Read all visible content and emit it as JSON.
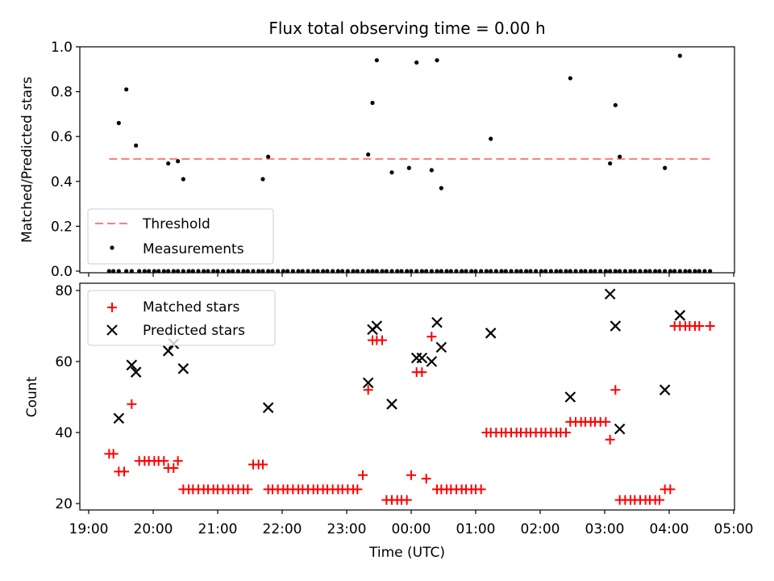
{
  "chart_data": [
    {
      "type": "scatter",
      "title": "Flux total observing time = 0.00 h",
      "ylabel": "Matched/Predicted stars",
      "xlabel": "",
      "xlim": [
        "19:00",
        "05:00"
      ],
      "ylim": [
        0,
        1
      ],
      "yticks": [
        0.0,
        0.2,
        0.4,
        0.6,
        0.8,
        1.0
      ],
      "ytick_labels": [
        "0.0",
        "0.2",
        "0.4",
        "0.6",
        "0.8",
        "1.0"
      ],
      "legend_placement": "lower-left",
      "threshold": {
        "name": "Threshold",
        "value": 0.5,
        "x_start": "19:19",
        "x_end": "04:38",
        "color": "#ff7f7f",
        "style": "dashed"
      },
      "series": [
        {
          "name": "Measurements",
          "color": "#000000",
          "marker": "dot",
          "x": [
            "19:19",
            "19:23",
            "19:28",
            "19:35",
            "19:40",
            "19:47",
            "19:52",
            "19:56",
            "20:01",
            "20:05",
            "20:10",
            "20:14",
            "20:19",
            "20:23",
            "20:28",
            "20:33",
            "20:37",
            "20:42",
            "20:47",
            "20:51",
            "20:56",
            "21:00",
            "21:05",
            "21:10",
            "21:14",
            "21:19",
            "21:24",
            "21:28",
            "21:33",
            "21:38",
            "21:42",
            "21:47",
            "21:51",
            "21:56",
            "22:01",
            "22:05",
            "22:10",
            "22:15",
            "22:19",
            "22:24",
            "22:29",
            "22:33",
            "22:38",
            "22:42",
            "22:47",
            "22:52",
            "22:56",
            "23:01",
            "23:06",
            "23:10",
            "23:15",
            "23:20",
            "23:24",
            "23:28",
            "23:33",
            "23:37",
            "23:42",
            "23:47",
            "23:51",
            "23:56",
            "00:00",
            "00:05",
            "00:10",
            "00:14",
            "00:19",
            "00:24",
            "00:28",
            "00:33",
            "00:37",
            "00:42",
            "00:47",
            "00:51",
            "00:56",
            "01:00",
            "01:05",
            "01:10",
            "01:14",
            "01:19",
            "01:24",
            "01:28",
            "01:33",
            "01:38",
            "01:42",
            "01:47",
            "01:51",
            "01:56",
            "02:01",
            "02:05",
            "02:10",
            "02:15",
            "02:19",
            "02:24",
            "02:28",
            "02:33",
            "02:38",
            "02:42",
            "02:47",
            "02:51",
            "02:56",
            "03:01",
            "03:05",
            "03:10",
            "03:14",
            "03:19",
            "03:24",
            "03:28",
            "03:33",
            "03:38",
            "03:42",
            "03:47",
            "03:51",
            "03:56",
            "04:01",
            "04:05",
            "04:10",
            "04:15",
            "04:19",
            "04:24",
            "04:28",
            "04:33",
            "04:38",
            "19:28",
            "19:35",
            "19:44",
            "20:14",
            "20:23",
            "20:28",
            "21:42",
            "21:47",
            "23:20",
            "23:24",
            "23:28",
            "23:42",
            "23:58",
            "00:05",
            "00:19",
            "00:24",
            "00:28",
            "01:14",
            "02:28",
            "03:05",
            "03:10",
            "03:14",
            "03:56",
            "04:10"
          ],
          "y": [
            0,
            0,
            0,
            0,
            0,
            0,
            0,
            0,
            0,
            0,
            0,
            0,
            0,
            0,
            0,
            0,
            0,
            0,
            0,
            0,
            0,
            0,
            0,
            0,
            0,
            0,
            0,
            0,
            0,
            0,
            0,
            0,
            0,
            0,
            0,
            0,
            0,
            0,
            0,
            0,
            0,
            0,
            0,
            0,
            0,
            0,
            0,
            0,
            0,
            0,
            0,
            0,
            0,
            0,
            0,
            0,
            0,
            0,
            0,
            0,
            0,
            0,
            0,
            0,
            0,
            0,
            0,
            0,
            0,
            0,
            0,
            0,
            0,
            0,
            0,
            0,
            0,
            0,
            0,
            0,
            0,
            0,
            0,
            0,
            0,
            0,
            0,
            0,
            0,
            0,
            0,
            0,
            0,
            0,
            0,
            0,
            0,
            0,
            0,
            0,
            0,
            0,
            0,
            0,
            0,
            0,
            0,
            0,
            0,
            0,
            0,
            0,
            0,
            0,
            0,
            0,
            0,
            0,
            0,
            0,
            0,
            0.66,
            0.81,
            0.56,
            0.48,
            0.49,
            0.41,
            0.41,
            0.51,
            0.52,
            0.75,
            0.94,
            0.44,
            0.46,
            0.93,
            0.45,
            0.94,
            0.37,
            0.59,
            0.86,
            0.48,
            0.74,
            0.51,
            0.46,
            0.96
          ]
        }
      ]
    },
    {
      "type": "scatter",
      "title": "",
      "xlabel": "Time (UTC)",
      "ylabel": "Count",
      "xlim": [
        "19:00",
        "05:00"
      ],
      "ylim": [
        18.5,
        81.5
      ],
      "xticks": [
        "19:00",
        "20:00",
        "21:00",
        "22:00",
        "23:00",
        "00:00",
        "01:00",
        "02:00",
        "03:00",
        "04:00",
        "05:00"
      ],
      "yticks": [
        20,
        40,
        60,
        80
      ],
      "ytick_labels": [
        "20",
        "40",
        "60",
        "80"
      ],
      "legend_placement": "upper-left",
      "series": [
        {
          "name": "Matched stars",
          "color": "#ff0000",
          "marker": "plus",
          "x": [
            "19:19",
            "19:23",
            "19:28",
            "19:33",
            "19:40",
            "19:47",
            "19:52",
            "19:56",
            "20:01",
            "20:05",
            "20:10",
            "20:14",
            "20:19",
            "20:23",
            "20:28",
            "20:33",
            "20:37",
            "20:42",
            "20:47",
            "20:51",
            "20:56",
            "21:00",
            "21:05",
            "21:10",
            "21:14",
            "21:19",
            "21:24",
            "21:28",
            "21:33",
            "21:38",
            "21:42",
            "21:47",
            "21:51",
            "21:56",
            "22:01",
            "22:05",
            "22:10",
            "22:15",
            "22:19",
            "22:24",
            "22:29",
            "22:33",
            "22:38",
            "22:42",
            "22:47",
            "22:52",
            "22:56",
            "23:01",
            "23:06",
            "23:10",
            "23:15",
            "23:20",
            "23:24",
            "23:28",
            "23:33",
            "23:37",
            "23:42",
            "23:47",
            "23:51",
            "23:56",
            "00:00",
            "00:05",
            "00:10",
            "00:14",
            "00:19",
            "00:24",
            "00:28",
            "00:33",
            "00:37",
            "00:42",
            "00:47",
            "00:51",
            "00:56",
            "01:00",
            "01:05",
            "01:10",
            "01:14",
            "01:19",
            "01:24",
            "01:28",
            "01:33",
            "01:38",
            "01:42",
            "01:47",
            "01:51",
            "01:56",
            "02:01",
            "02:05",
            "02:10",
            "02:15",
            "02:19",
            "02:24",
            "02:28",
            "02:33",
            "02:38",
            "02:42",
            "02:47",
            "02:51",
            "02:56",
            "03:01",
            "03:05",
            "03:10",
            "03:14",
            "03:19",
            "03:24",
            "03:28",
            "03:33",
            "03:38",
            "03:42",
            "03:47",
            "03:51",
            "03:56",
            "04:01",
            "04:05",
            "04:10",
            "04:15",
            "04:19",
            "04:24",
            "04:28",
            "04:38"
          ],
          "y": [
            34,
            34,
            29,
            29,
            48,
            32,
            32,
            32,
            32,
            32,
            32,
            30,
            30,
            32,
            24,
            24,
            24,
            24,
            24,
            24,
            24,
            24,
            24,
            24,
            24,
            24,
            24,
            24,
            31,
            31,
            31,
            24,
            24,
            24,
            24,
            24,
            24,
            24,
            24,
            24,
            24,
            24,
            24,
            24,
            24,
            24,
            24,
            24,
            24,
            24,
            28,
            52,
            66,
            66,
            66,
            21,
            21,
            21,
            21,
            21,
            28,
            57,
            57,
            27,
            67,
            24,
            24,
            24,
            24,
            24,
            24,
            24,
            24,
            24,
            24,
            40,
            40,
            40,
            40,
            40,
            40,
            40,
            40,
            40,
            40,
            40,
            40,
            40,
            40,
            40,
            40,
            40,
            43,
            43,
            43,
            43,
            43,
            43,
            43,
            43,
            38,
            52,
            21,
            21,
            21,
            21,
            21,
            21,
            21,
            21,
            21,
            24,
            24,
            70,
            70,
            70,
            70,
            70,
            70,
            70
          ]
        },
        {
          "name": "Predicted stars",
          "color": "#000000",
          "marker": "x",
          "x": [
            "19:28",
            "19:40",
            "19:44",
            "20:14",
            "20:19",
            "20:28",
            "21:47",
            "23:20",
            "23:24",
            "23:28",
            "23:42",
            "24:05",
            "24:10",
            "24:19",
            "24:24",
            "24:28",
            "25:14",
            "26:28",
            "27:05",
            "27:10",
            "27:14",
            "27:56",
            "28:10"
          ],
          "x_display_note": "",
          "y": [
            44,
            59,
            57,
            63,
            65,
            58,
            47,
            54,
            69,
            70,
            48,
            61,
            61,
            60,
            71,
            64,
            68,
            50,
            79,
            70,
            41,
            52,
            73
          ]
        }
      ]
    }
  ]
}
